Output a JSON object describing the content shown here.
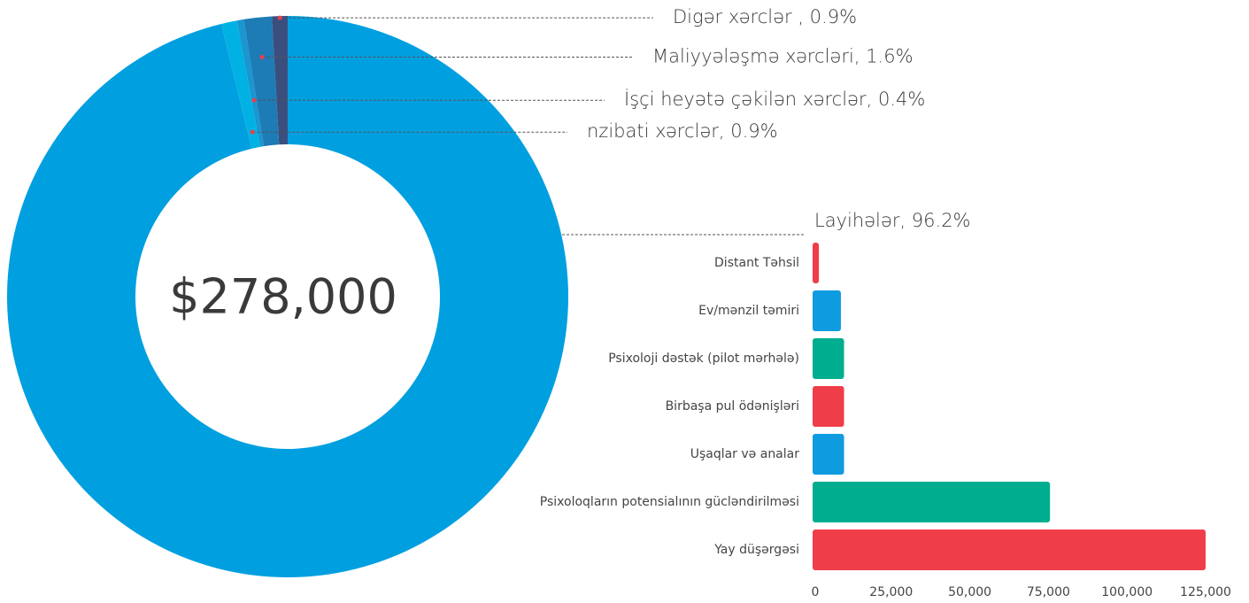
{
  "chart_data": [
    {
      "type": "donut",
      "center_label": "$278,000",
      "labels": [
        "Layihələr, 96.2%",
        "nzibati xərclər, 0.9%",
        "İşçi heyətə çəkilən xərclər, 0.4%",
        "Maliyyələşmə xərcləri, 1.6%",
        "Digər xərclər , 0.9%"
      ],
      "values": [
        96.2,
        0.9,
        0.4,
        1.6,
        0.9
      ],
      "colors": [
        "#009fe0",
        "#00b2e3",
        "#1a96d0",
        "#1d7bb5",
        "#3b4f7f"
      ]
    },
    {
      "type": "hbar",
      "categories": [
        "Distant Təhsil",
        "Ev/mənzil təmiri",
        "Psixoloji dəstək (pilot mərhələ)",
        "Birbaşa pul ödənişləri",
        "Uşaqlar və analar",
        "Psixoloqların potensialının gücləndirilməsi",
        "Yay düşərgəsi"
      ],
      "values": [
        2000,
        9000,
        10000,
        10000,
        10000,
        75500,
        125000
      ],
      "colors": [
        "#ef3e4a",
        "#0f9be0",
        "#00ad8e",
        "#ef3e4a",
        "#0f9be0",
        "#00ad8e",
        "#ef3e4a"
      ],
      "xlim": [
        0,
        125000
      ],
      "xticks": [
        0,
        {
          "value": 25000,
          "label": "25,000"
        },
        {
          "value": 50000,
          "label": "50,000"
        },
        {
          "value": 75000,
          "label": "75,000"
        },
        {
          "value": 100000,
          "label": "100,000"
        },
        {
          "value": 125000,
          "label": "125,000"
        }
      ]
    }
  ]
}
